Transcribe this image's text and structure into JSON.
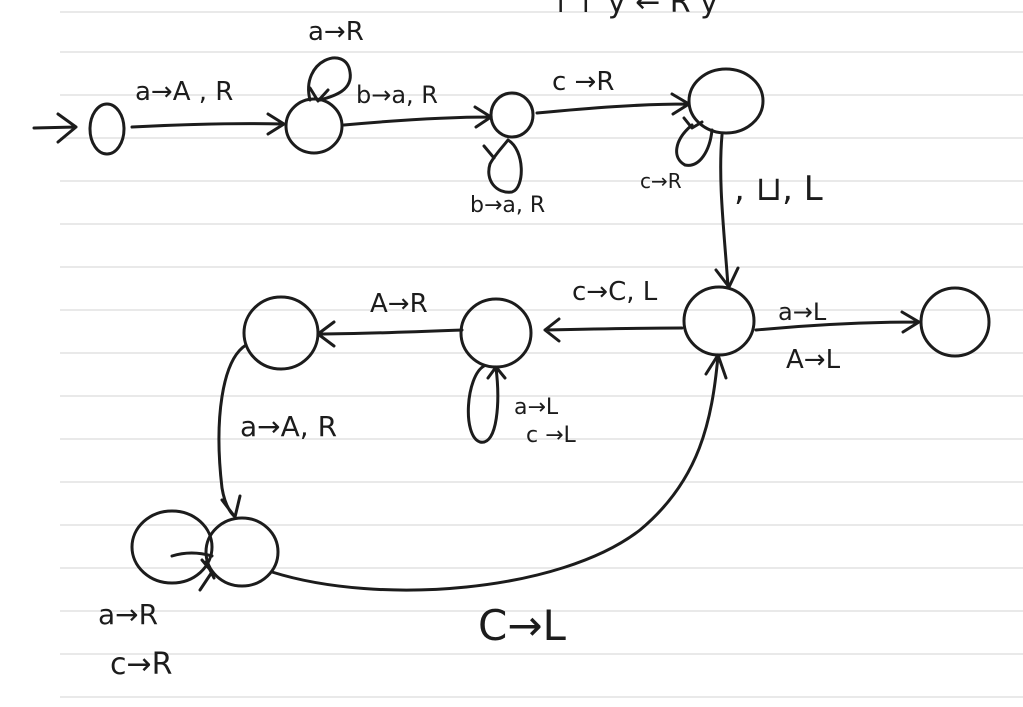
{
  "page": {
    "ruled_lines": true,
    "ink_color": "#1c1c1c",
    "rule_color": "#dcdcdc",
    "background_color": "#ffffff"
  },
  "top_partial_text": "↑↑ y ← R y",
  "transition_labels": {
    "q0_q1": "a→A , R",
    "q1_loop": "a→R",
    "q1_q2": "b→a, R",
    "q2_loop": "b→a, R",
    "q2_q3": "c →R",
    "q3_loop": "c→R",
    "q3_q4": ", ⊔, L",
    "q4_q5": "c→C, L",
    "q4_q7_line1": "a→L",
    "q4_q7_line2": "A→L",
    "q5_q6": "A→R",
    "q5_loop_line1": "a→L",
    "q5_loop_line2": "c →L",
    "q6_q8": "a→A, R",
    "q8_loop_line1": "a→R",
    "q8_loop_line2": "c→R",
    "q8_q4": "C→L"
  }
}
